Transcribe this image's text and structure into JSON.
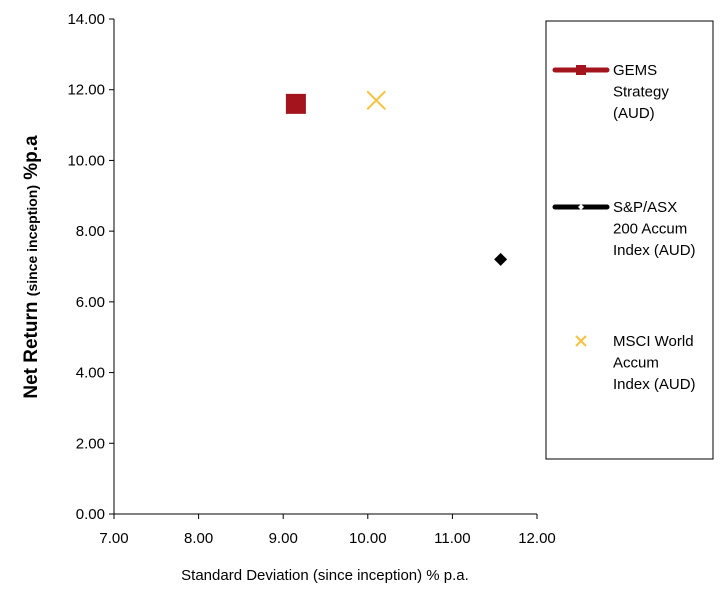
{
  "chart_data": {
    "type": "scatter",
    "xlabel": "Standard Deviation (since inception) % p.a.",
    "ylabel_main": "Net Return ",
    "ylabel_small": "(since inception)",
    "ylabel_tail": " %p.a",
    "xlim": [
      7,
      12
    ],
    "ylim": [
      0,
      14
    ],
    "x_ticks": [
      "7.00",
      "8.00",
      "9.00",
      "10.00",
      "11.00",
      "12.00"
    ],
    "y_ticks": [
      "0.00",
      "2.00",
      "4.00",
      "6.00",
      "8.00",
      "10.00",
      "12.00",
      "14.00"
    ],
    "grid": false,
    "legend_position": "right",
    "series": [
      {
        "name_lines": [
          "GEMS",
          "Strategy",
          "(AUD)"
        ],
        "x": 9.15,
        "y": 11.6,
        "marker": "square",
        "color": "#A3141C"
      },
      {
        "name_lines": [
          "S&P/ASX",
          "200 Accum",
          "Index (AUD)"
        ],
        "x": 11.57,
        "y": 7.2,
        "marker": "diamond",
        "color": "#000000"
      },
      {
        "name_lines": [
          "MSCI World",
          "Accum",
          "Index (AUD)"
        ],
        "x": 10.1,
        "y": 11.7,
        "marker": "x",
        "color": "#F5C242"
      }
    ]
  }
}
